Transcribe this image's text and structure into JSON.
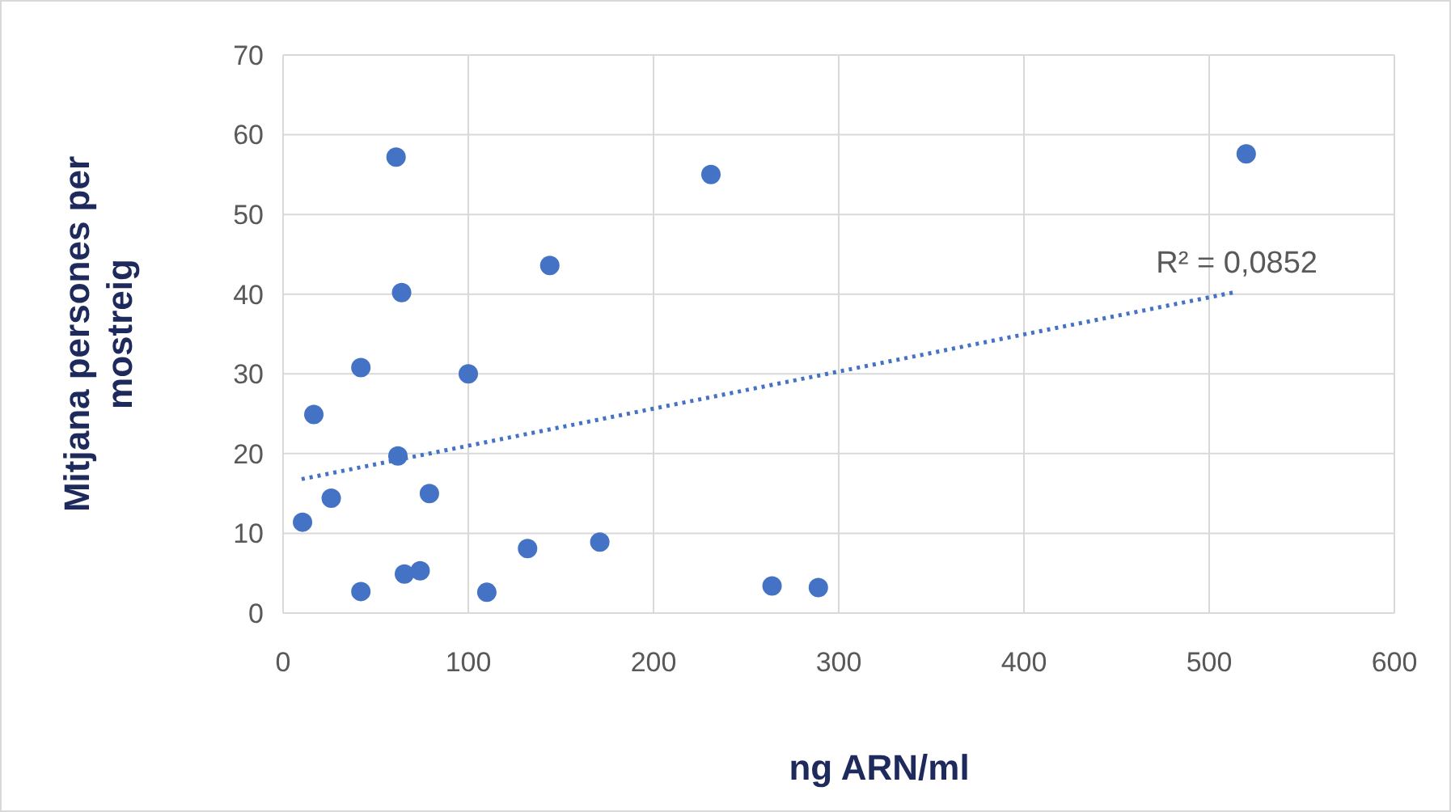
{
  "chart_data": {
    "type": "scatter",
    "xlabel": "ng ARN/ml",
    "ylabel": "Mitjana persones per mostreig",
    "xlim": [
      0,
      600
    ],
    "xticks": [
      0,
      100,
      200,
      300,
      400,
      500,
      600
    ],
    "ylim": [
      0,
      70
    ],
    "yticks": [
      0,
      10,
      20,
      30,
      40,
      50,
      60,
      70
    ],
    "grid": true,
    "marker": "circle",
    "series": [
      {
        "color": "#4472c4",
        "x": [
          10.5,
          16.6,
          26,
          42,
          42,
          61,
          62,
          64,
          65.5,
          74,
          79,
          100,
          110,
          132,
          144,
          171,
          231,
          264,
          289,
          520
        ],
        "values": [
          11.4,
          24.9,
          14.4,
          2.7,
          30.8,
          57.2,
          19.7,
          40.2,
          4.9,
          5.3,
          15.0,
          30.0,
          2.6,
          8.1,
          43.6,
          8.9,
          55.0,
          3.4,
          3.2,
          57.6
        ]
      },
      {
        "type": "line",
        "color": "#4472c4",
        "line_style": "dotted",
        "marker": "none",
        "x": [
          10,
          515
        ],
        "values": [
          16.8,
          40.3
        ]
      }
    ],
    "annotations": [
      {
        "text": "R² = 0,0852",
        "x": 515,
        "y": 40.3
      }
    ]
  }
}
